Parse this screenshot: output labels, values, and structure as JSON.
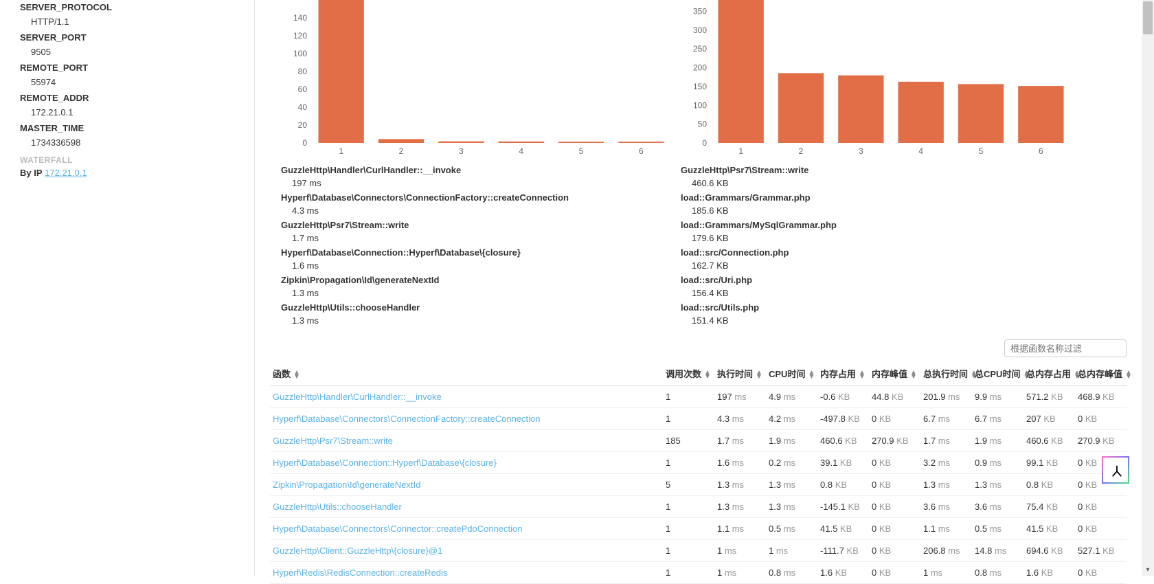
{
  "sidebar": {
    "items": [
      {
        "label": "SERVER_PROTOCOL",
        "value": "HTTP/1.1"
      },
      {
        "label": "SERVER_PORT",
        "value": "9505"
      },
      {
        "label": "REMOTE_PORT",
        "value": "55974"
      },
      {
        "label": "REMOTE_ADDR",
        "value": "172.21.0.1"
      },
      {
        "label": "MASTER_TIME",
        "value": "1734336598"
      }
    ],
    "section": "WATERFALL",
    "byip_label": "By IP",
    "byip_value": "172.21.0.1",
    "link_color": "#5cb3e6"
  },
  "chart_left": {
    "type": "bar",
    "categories": [
      "1",
      "2",
      "3",
      "4",
      "5",
      "6"
    ],
    "values": [
      197,
      4.3,
      1.7,
      1.6,
      1.3,
      1.3
    ],
    "yticks": [
      0,
      20,
      40,
      60,
      80,
      100,
      120,
      140
    ],
    "ylim": [
      0,
      160
    ],
    "bar_color": "#e26e47",
    "axis_color": "#666",
    "plot_bg": "#ffffff",
    "legend": [
      {
        "name": "GuzzleHttp\\Handler\\CurlHandler::__invoke",
        "val": "197 ms"
      },
      {
        "name": "Hyperf\\Database\\Connectors\\ConnectionFactory::createConnection",
        "val": "4.3 ms"
      },
      {
        "name": "GuzzleHttp\\Psr7\\Stream::write",
        "val": "1.7 ms"
      },
      {
        "name": "Hyperf\\Database\\Connection::Hyperf\\Database\\{closure}",
        "val": "1.6 ms"
      },
      {
        "name": "Zipkin\\Propagation\\Id\\generateNextId",
        "val": "1.3 ms"
      },
      {
        "name": "GuzzleHttp\\Utils::chooseHandler",
        "val": "1.3 ms"
      }
    ]
  },
  "chart_right": {
    "type": "bar",
    "categories": [
      "1",
      "2",
      "3",
      "4",
      "5",
      "6"
    ],
    "values": [
      460.6,
      185.6,
      179.6,
      162.7,
      156.4,
      151.4
    ],
    "yticks": [
      0,
      50,
      100,
      150,
      200,
      250,
      300,
      350
    ],
    "ylim": [
      0,
      380
    ],
    "bar_color": "#e26e47",
    "axis_color": "#666",
    "plot_bg": "#ffffff",
    "legend": [
      {
        "name": "GuzzleHttp\\Psr7\\Stream::write",
        "val": "460.6 KB"
      },
      {
        "name": "load::Grammars/Grammar.php",
        "val": "185.6 KB"
      },
      {
        "name": "load::Grammars/MySqlGrammar.php",
        "val": "179.6 KB"
      },
      {
        "name": "load::src/Connection.php",
        "val": "162.7 KB"
      },
      {
        "name": "load::src/Uri.php",
        "val": "156.4 KB"
      },
      {
        "name": "load::src/Utils.php",
        "val": "151.4 KB"
      }
    ]
  },
  "filter": {
    "placeholder": "根据函数名称过滤"
  },
  "table": {
    "columns": [
      "函数",
      "调用次数",
      "执行时间",
      "CPU时间",
      "内存占用",
      "内存峰值",
      "总执行时间",
      "总CPU时间",
      "总内存占用",
      "总内存峰值"
    ],
    "link_color": "#5cb3e6",
    "unit_color": "#999999",
    "rows": [
      {
        "fn": "GuzzleHttp\\Handler\\CurlHandler::__invoke",
        "calls": "1",
        "exec": "197",
        "exec_u": "ms",
        "cpu": "4.9",
        "cpu_u": "ms",
        "mem": "-0.6",
        "mem_u": "KB",
        "peak": "44.8",
        "peak_u": "KB",
        "texec": "201.9",
        "texec_u": "ms",
        "tcpu": "9.9",
        "tcpu_u": "ms",
        "tmem": "571.2",
        "tmem_u": "KB",
        "tpeak": "468.9",
        "tpeak_u": "KB"
      },
      {
        "fn": "Hyperf\\Database\\Connectors\\ConnectionFactory::createConnection",
        "calls": "1",
        "exec": "4.3",
        "exec_u": "ms",
        "cpu": "4.2",
        "cpu_u": "ms",
        "mem": "-497.8",
        "mem_u": "KB",
        "peak": "0",
        "peak_u": "KB",
        "texec": "6.7",
        "texec_u": "ms",
        "tcpu": "6.7",
        "tcpu_u": "ms",
        "tmem": "207",
        "tmem_u": "KB",
        "tpeak": "0",
        "tpeak_u": "KB"
      },
      {
        "fn": "GuzzleHttp\\Psr7\\Stream::write",
        "calls": "185",
        "exec": "1.7",
        "exec_u": "ms",
        "cpu": "1.9",
        "cpu_u": "ms",
        "mem": "460.6",
        "mem_u": "KB",
        "peak": "270.9",
        "peak_u": "KB",
        "texec": "1.7",
        "texec_u": "ms",
        "tcpu": "1.9",
        "tcpu_u": "ms",
        "tmem": "460.6",
        "tmem_u": "KB",
        "tpeak": "270.9",
        "tpeak_u": "KB"
      },
      {
        "fn": "Hyperf\\Database\\Connection::Hyperf\\Database\\{closure}",
        "calls": "1",
        "exec": "1.6",
        "exec_u": "ms",
        "cpu": "0.2",
        "cpu_u": "ms",
        "mem": "39.1",
        "mem_u": "KB",
        "peak": "0",
        "peak_u": "KB",
        "texec": "3.2",
        "texec_u": "ms",
        "tcpu": "0.9",
        "tcpu_u": "ms",
        "tmem": "99.1",
        "tmem_u": "KB",
        "tpeak": "0",
        "tpeak_u": "KB"
      },
      {
        "fn": "Zipkin\\Propagation\\Id\\generateNextId",
        "calls": "5",
        "exec": "1.3",
        "exec_u": "ms",
        "cpu": "1.3",
        "cpu_u": "ms",
        "mem": "0.8",
        "mem_u": "KB",
        "peak": "0",
        "peak_u": "KB",
        "texec": "1.3",
        "texec_u": "ms",
        "tcpu": "1.3",
        "tcpu_u": "ms",
        "tmem": "0.8",
        "tmem_u": "KB",
        "tpeak": "0",
        "tpeak_u": "KB"
      },
      {
        "fn": "GuzzleHttp\\Utils::chooseHandler",
        "calls": "1",
        "exec": "1.3",
        "exec_u": "ms",
        "cpu": "1.3",
        "cpu_u": "ms",
        "mem": "-145.1",
        "mem_u": "KB",
        "peak": "0",
        "peak_u": "KB",
        "texec": "3.6",
        "texec_u": "ms",
        "tcpu": "3.6",
        "tcpu_u": "ms",
        "tmem": "75.4",
        "tmem_u": "KB",
        "tpeak": "0",
        "tpeak_u": "KB"
      },
      {
        "fn": "Hyperf\\Database\\Connectors\\Connector::createPdoConnection",
        "calls": "1",
        "exec": "1.1",
        "exec_u": "ms",
        "cpu": "0.5",
        "cpu_u": "ms",
        "mem": "41.5",
        "mem_u": "KB",
        "peak": "0",
        "peak_u": "KB",
        "texec": "1.1",
        "texec_u": "ms",
        "tcpu": "0.5",
        "tcpu_u": "ms",
        "tmem": "41.5",
        "tmem_u": "KB",
        "tpeak": "0",
        "tpeak_u": "KB"
      },
      {
        "fn": "GuzzleHttp\\Client::GuzzleHttp\\{closure}@1",
        "calls": "1",
        "exec": "1",
        "exec_u": "ms",
        "cpu": "1",
        "cpu_u": "ms",
        "mem": "-111.7",
        "mem_u": "KB",
        "peak": "0",
        "peak_u": "KB",
        "texec": "206.8",
        "texec_u": "ms",
        "tcpu": "14.8",
        "tcpu_u": "ms",
        "tmem": "694.6",
        "tmem_u": "KB",
        "tpeak": "527.1",
        "tpeak_u": "KB"
      },
      {
        "fn": "Hyperf\\Redis\\RedisConnection::createRedis",
        "calls": "1",
        "exec": "1",
        "exec_u": "ms",
        "cpu": "0.8",
        "cpu_u": "ms",
        "mem": "1.6",
        "mem_u": "KB",
        "peak": "0",
        "peak_u": "KB",
        "texec": "1",
        "texec_u": "ms",
        "tcpu": "0.8",
        "tcpu_u": "ms",
        "tmem": "1.6",
        "tmem_u": "KB",
        "tpeak": "0",
        "tpeak_u": "KB"
      }
    ]
  }
}
